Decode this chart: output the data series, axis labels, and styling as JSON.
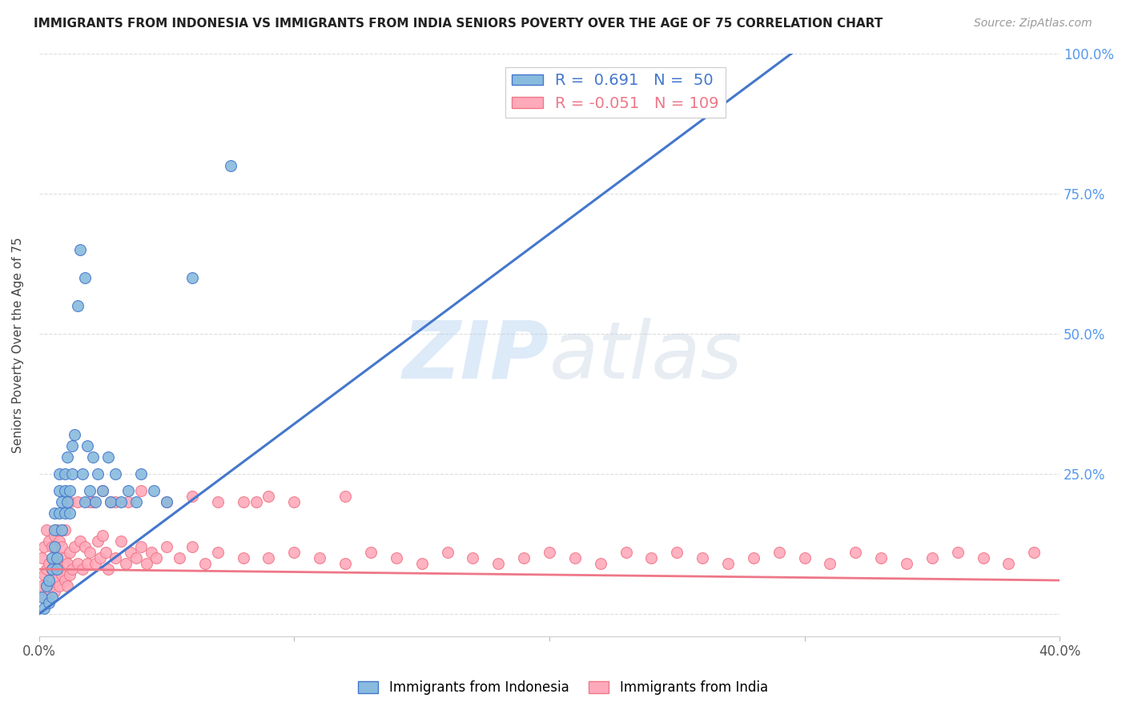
{
  "title": "IMMIGRANTS FROM INDONESIA VS IMMIGRANTS FROM INDIA SENIORS POVERTY OVER THE AGE OF 75 CORRELATION CHART",
  "source": "Source: ZipAtlas.com",
  "ylabel": "Seniors Poverty Over the Age of 75",
  "color_indonesia": "#88BBDD",
  "color_india": "#FFAABB",
  "color_line_indonesia": "#4477CC",
  "color_line_india": "#EE7788",
  "R_indonesia": 0.691,
  "N_indonesia": 50,
  "R_india": -0.051,
  "N_india": 109,
  "xlim": [
    0.0,
    0.4
  ],
  "ylim": [
    0.0,
    1.0
  ],
  "ytick_vals": [
    0.0,
    0.25,
    0.5,
    0.75,
    1.0
  ],
  "ytick_labels_right": [
    "",
    "25.0%",
    "50.0%",
    "75.0%",
    "100.0%"
  ],
  "xtick_vals": [
    0.0,
    0.1,
    0.2,
    0.3,
    0.4
  ],
  "xtick_labels": [
    "0.0%",
    "",
    "",
    "",
    "40.0%"
  ],
  "watermark": "ZIPatlas",
  "indonesia_x": [
    0.001,
    0.002,
    0.003,
    0.004,
    0.004,
    0.005,
    0.005,
    0.005,
    0.006,
    0.006,
    0.006,
    0.007,
    0.007,
    0.008,
    0.008,
    0.008,
    0.009,
    0.009,
    0.01,
    0.01,
    0.01,
    0.011,
    0.011,
    0.012,
    0.012,
    0.013,
    0.013,
    0.014,
    0.015,
    0.016,
    0.017,
    0.018,
    0.018,
    0.019,
    0.02,
    0.021,
    0.022,
    0.023,
    0.025,
    0.027,
    0.028,
    0.03,
    0.032,
    0.035,
    0.038,
    0.04,
    0.045,
    0.05,
    0.06,
    0.075
  ],
  "indonesia_y": [
    0.03,
    0.01,
    0.05,
    0.02,
    0.06,
    0.08,
    0.03,
    0.1,
    0.15,
    0.12,
    0.18,
    0.1,
    0.08,
    0.22,
    0.18,
    0.25,
    0.2,
    0.15,
    0.22,
    0.18,
    0.25,
    0.2,
    0.28,
    0.18,
    0.22,
    0.3,
    0.25,
    0.32,
    0.55,
    0.65,
    0.25,
    0.6,
    0.2,
    0.3,
    0.22,
    0.28,
    0.2,
    0.25,
    0.22,
    0.28,
    0.2,
    0.25,
    0.2,
    0.22,
    0.2,
    0.25,
    0.22,
    0.2,
    0.6,
    0.8
  ],
  "indonesia_line_x": [
    0.0,
    0.295
  ],
  "indonesia_line_y": [
    0.0,
    1.0
  ],
  "india_x": [
    0.001,
    0.001,
    0.002,
    0.002,
    0.002,
    0.003,
    0.003,
    0.003,
    0.004,
    0.004,
    0.004,
    0.005,
    0.005,
    0.005,
    0.006,
    0.006,
    0.006,
    0.007,
    0.007,
    0.007,
    0.008,
    0.008,
    0.008,
    0.009,
    0.009,
    0.01,
    0.01,
    0.01,
    0.011,
    0.011,
    0.012,
    0.012,
    0.013,
    0.014,
    0.015,
    0.016,
    0.017,
    0.018,
    0.019,
    0.02,
    0.021,
    0.022,
    0.023,
    0.024,
    0.025,
    0.026,
    0.027,
    0.028,
    0.03,
    0.032,
    0.034,
    0.036,
    0.038,
    0.04,
    0.042,
    0.044,
    0.046,
    0.05,
    0.055,
    0.06,
    0.065,
    0.07,
    0.08,
    0.085,
    0.09,
    0.1,
    0.11,
    0.12,
    0.13,
    0.14,
    0.15,
    0.16,
    0.17,
    0.18,
    0.19,
    0.2,
    0.21,
    0.22,
    0.23,
    0.24,
    0.25,
    0.26,
    0.27,
    0.28,
    0.29,
    0.3,
    0.31,
    0.32,
    0.33,
    0.34,
    0.35,
    0.36,
    0.37,
    0.38,
    0.39,
    0.012,
    0.015,
    0.02,
    0.025,
    0.03,
    0.035,
    0.04,
    0.05,
    0.06,
    0.07,
    0.08,
    0.09,
    0.1,
    0.12
  ],
  "india_y": [
    0.05,
    0.1,
    0.03,
    0.07,
    0.12,
    0.05,
    0.08,
    0.15,
    0.04,
    0.09,
    0.13,
    0.05,
    0.08,
    0.12,
    0.04,
    0.09,
    0.14,
    0.06,
    0.1,
    0.15,
    0.05,
    0.08,
    0.13,
    0.07,
    0.12,
    0.06,
    0.1,
    0.15,
    0.05,
    0.09,
    0.07,
    0.11,
    0.08,
    0.12,
    0.09,
    0.13,
    0.08,
    0.12,
    0.09,
    0.11,
    0.2,
    0.09,
    0.13,
    0.1,
    0.14,
    0.11,
    0.08,
    0.2,
    0.1,
    0.13,
    0.09,
    0.11,
    0.1,
    0.12,
    0.09,
    0.11,
    0.1,
    0.12,
    0.1,
    0.12,
    0.09,
    0.11,
    0.1,
    0.2,
    0.1,
    0.11,
    0.1,
    0.09,
    0.11,
    0.1,
    0.09,
    0.11,
    0.1,
    0.09,
    0.1,
    0.11,
    0.1,
    0.09,
    0.11,
    0.1,
    0.11,
    0.1,
    0.09,
    0.1,
    0.11,
    0.1,
    0.09,
    0.11,
    0.1,
    0.09,
    0.1,
    0.11,
    0.1,
    0.09,
    0.11,
    0.2,
    0.2,
    0.2,
    0.22,
    0.2,
    0.2,
    0.22,
    0.2,
    0.21,
    0.2,
    0.2,
    0.21,
    0.2,
    0.21
  ],
  "india_line_x": [
    0.0,
    0.4
  ],
  "india_line_y": [
    0.08,
    0.06
  ]
}
